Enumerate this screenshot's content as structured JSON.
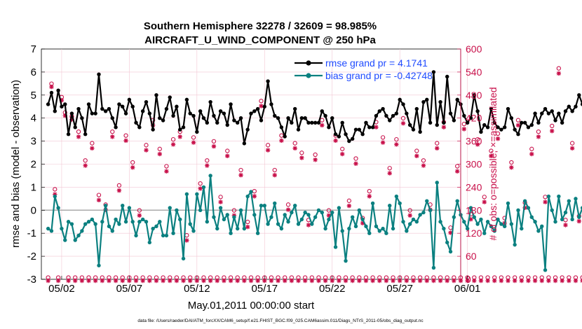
{
  "chart_data": {
    "type": "line",
    "title": "Southern Hemisphere 32278 / 32609 = 98.985%",
    "subtitle": "AIRCRAFT_U_WIND_COMPONENT @ 250 hPa",
    "xlabel": "May.01,2011 00:00:00 start",
    "ylabel": "rmse and bias (model - observation)",
    "ylabel_right": "# of obs: o=possible; ×=assimilated",
    "ylim": [
      -3,
      7
    ],
    "ylim_right": [
      0,
      600
    ],
    "x_range_days": [
      0.5,
      31.5
    ],
    "y_ticks": [
      "-3",
      "-2",
      "-1",
      "0",
      "1",
      "2",
      "3",
      "4",
      "5",
      "6",
      "7"
    ],
    "y_ticks_right": [
      "0",
      "60",
      "120",
      "180",
      "240",
      "300",
      "360",
      "420",
      "480",
      "540",
      "600"
    ],
    "x_ticks": [
      {
        "label": "05/02",
        "day": 2
      },
      {
        "label": "05/07",
        "day": 7
      },
      {
        "label": "05/12",
        "day": 12
      },
      {
        "label": "05/17",
        "day": 17
      },
      {
        "label": "05/22",
        "day": 22
      },
      {
        "label": "05/27",
        "day": 27
      },
      {
        "label": "06/01",
        "day": 32
      }
    ],
    "legend": [
      {
        "label": "rmse grand pr = 4.1741",
        "color": "#000000"
      },
      {
        "label": "bias grand pr = -0.42748",
        "color": "#0b8080"
      }
    ],
    "zero_line": 0,
    "series": [
      {
        "name": "rmse",
        "color": "#000000",
        "values": [
          4.6,
          5.1,
          4.3,
          5.2,
          4.5,
          4.6,
          3.3,
          4.2,
          3.6,
          4.4,
          4.0,
          3.3,
          4.6,
          4.2,
          4.2,
          5.9,
          4.4,
          4.3,
          4.4,
          4.0,
          3.6,
          4.6,
          4.5,
          4.2,
          4.8,
          4.5,
          3.8,
          3.6,
          4.3,
          4.7,
          4.2,
          3.5,
          5.0,
          4.0,
          3.9,
          4.4,
          4.9,
          4.1,
          4.5,
          3.5,
          3.6,
          4.8,
          4.2,
          4.1,
          3.4,
          4.3,
          4.0,
          3.8,
          4.7,
          4.1,
          3.8,
          4.3,
          4.2,
          3.7,
          4.6,
          3.9,
          3.8,
          4.0,
          2.9,
          3.5,
          4.2,
          4.3,
          4.4,
          3.9,
          4.5,
          5.6,
          4.6,
          4.1,
          4.0,
          3.6,
          3.2,
          4.0,
          3.8,
          4.4,
          3.5,
          4.0,
          4.0,
          3.8,
          3.8,
          3.8,
          3.8,
          4.3,
          4.1,
          3.6,
          4.0,
          3.3,
          3.2,
          3.8,
          3.3,
          3.0,
          3.1,
          3.5,
          3.5,
          3.3,
          3.8,
          3.6,
          3.6,
          4.1,
          4.3,
          4.4,
          4.1,
          3.9,
          4.1,
          4.2,
          4.8,
          4.6,
          4.2,
          3.7,
          3.5,
          4.4,
          3.4,
          4.7,
          4.8,
          3.8,
          6.0,
          3.7,
          4.7,
          3.8,
          5.8,
          4.2,
          3.9,
          4.8,
          4.6,
          4.1,
          3.8,
          4.0,
          5.0,
          4.3,
          3.4,
          3.7,
          3.6,
          4.4,
          3.8,
          3.6,
          3.5,
          3.6,
          4.4,
          4.0,
          3.5,
          3.3,
          3.8,
          3.8,
          3.6,
          3.7,
          4.2,
          3.8,
          4.2,
          4.4,
          4.2,
          4.3,
          3.9,
          4.2,
          3.8,
          4.3,
          4.5,
          4.3,
          4.5,
          5.0,
          4.6,
          3.8,
          4.2,
          5.5
        ]
      },
      {
        "name": "bias",
        "color": "#0b8080",
        "values": [
          -0.8,
          -0.9,
          0.6,
          0.1,
          -0.8,
          -1.3,
          -0.5,
          -0.6,
          -1.3,
          -1.1,
          -0.9,
          -0.6,
          -0.5,
          -0.4,
          -0.6,
          -2.4,
          -0.5,
          0.2,
          -0.7,
          -0.9,
          -0.4,
          -0.6,
          0.2,
          -0.5,
          0.1,
          -0.5,
          -1.1,
          -0.5,
          -0.4,
          -0.5,
          -1.4,
          -0.8,
          -0.7,
          -0.5,
          -1.1,
          -1.1,
          0.1,
          -1.0,
          0.0,
          -0.4,
          -2.1,
          0.7,
          -0.6,
          -0.9,
          0.7,
          0.0,
          1.0,
          -0.5,
          1.5,
          -0.3,
          -0.8,
          0.1,
          -0.4,
          -0.2,
          -1.0,
          -0.3,
          -0.8,
          0.0,
          -0.8,
          0.6,
          0.8,
          -0.2,
          -1.0,
          0.2,
          0.2,
          -0.6,
          -0.3,
          0.3,
          -0.6,
          -0.8,
          -0.2,
          -0.5,
          -0.1,
          0.2,
          -0.6,
          -0.4,
          -0.1,
          -0.2,
          -0.6,
          -0.3,
          0.0,
          -0.1,
          -0.8,
          -0.4,
          -0.1,
          -1.6,
          0.1,
          -0.9,
          -2.2,
          -0.8,
          -0.3,
          -0.7,
          0.0,
          -0.4,
          -0.7,
          -1.0,
          0.3,
          -0.7,
          -0.9,
          -0.8,
          -1.0,
          0.2,
          -0.8,
          0.6,
          0.3,
          -0.5,
          -0.9,
          -0.6,
          -0.4,
          -0.5,
          -0.2,
          -0.1,
          0.4,
          0.0,
          -2.5,
          1.2,
          -0.5,
          -0.8,
          -1.4,
          -1.8,
          -0.3,
          0.4,
          -0.2,
          -0.5,
          -0.8,
          0.1,
          -0.3,
          -0.6,
          -0.4,
          -1.0,
          -0.5,
          -0.7,
          -0.9,
          -0.4,
          -0.6,
          -0.7,
          0.3,
          -0.6,
          -1.5,
          0.0,
          -0.8,
          0.4,
          0.1,
          -0.3,
          -0.5,
          -0.9,
          -0.7,
          -2.6,
          0.6,
          0.0,
          -0.5,
          0.6,
          -0.4,
          -0.1,
          0.4,
          -0.4,
          0.5,
          -0.3,
          0.1,
          -0.7,
          -0.6,
          -0.9,
          -1.0
        ]
      },
      {
        "name": "obs possible",
        "color": "#c8104a",
        "values": [
          0,
          505,
          230,
          0,
          470,
          430,
          0,
          420,
          0,
          380,
          0,
          305,
          0,
          350,
          0,
          215,
          0,
          190,
          0,
          380,
          0,
          240,
          0,
          370,
          0,
          300,
          0,
          175,
          0,
          345,
          0,
          410,
          0,
          335,
          0,
          290,
          0,
          360,
          0,
          380,
          0,
          110,
          0,
          365,
          0,
          245,
          0,
          305,
          0,
          355,
          0,
          210,
          0,
          330,
          0,
          175,
          0,
          280,
          0,
          145,
          0,
          225,
          0,
          460,
          0,
          345,
          0,
          280,
          0,
          370,
          0,
          190,
          0,
          350,
          0,
          325,
          0,
          150,
          0,
          320,
          0,
          410,
          0,
          175,
          0,
          370,
          0,
          335,
          0,
          200,
          0,
          310,
          0,
          155,
          0,
          225,
          0,
          405,
          0,
          365,
          0,
          285,
          0,
          360,
          0,
          415,
          0,
          175,
          0,
          330,
          0,
          305,
          0,
          190,
          0,
          350,
          0,
          405,
          0,
          130,
          0,
          290,
          0,
          400,
          0,
          165,
          0,
          360,
          0,
          210,
          0,
          330,
          0,
          375,
          0,
          155,
          0,
          300,
          0,
          410,
          0,
          195,
          0,
          335,
          0,
          380,
          0,
          210,
          0,
          395,
          0,
          545,
          0,
          150,
          0,
          350,
          0,
          160,
          0,
          440,
          0,
          370,
          0,
          195,
          0,
          390,
          0,
          140,
          0,
          200
        ]
      },
      {
        "name": "obs assimilated",
        "color": "#c8104a",
        "values": [
          0,
          505,
          225,
          0,
          470,
          430,
          0,
          420,
          0,
          375,
          0,
          300,
          0,
          345,
          0,
          210,
          0,
          185,
          0,
          375,
          0,
          235,
          0,
          365,
          0,
          295,
          0,
          170,
          0,
          340,
          0,
          405,
          0,
          330,
          0,
          285,
          0,
          355,
          0,
          375,
          0,
          105,
          0,
          360,
          0,
          240,
          0,
          300,
          0,
          350,
          0,
          205,
          0,
          325,
          0,
          170,
          0,
          275,
          0,
          140,
          0,
          220,
          0,
          455,
          0,
          340,
          0,
          275,
          0,
          365,
          0,
          185,
          0,
          345,
          0,
          320,
          0,
          145,
          0,
          315,
          0,
          405,
          0,
          170,
          0,
          365,
          0,
          330,
          0,
          195,
          0,
          305,
          0,
          150,
          0,
          220,
          0,
          400,
          0,
          360,
          0,
          280,
          0,
          355,
          0,
          410,
          0,
          170,
          0,
          325,
          0,
          300,
          0,
          185,
          0,
          345,
          0,
          400,
          0,
          125,
          0,
          285,
          0,
          395,
          0,
          160,
          0,
          355,
          0,
          205,
          0,
          325,
          0,
          370,
          0,
          150,
          0,
          295,
          0,
          405,
          0,
          190,
          0,
          330,
          0,
          375,
          0,
          205,
          0,
          390,
          0,
          540,
          0,
          145,
          0,
          345,
          0,
          155,
          0,
          435,
          0,
          365,
          0,
          190,
          0,
          385,
          0,
          135,
          0,
          195
        ]
      }
    ]
  },
  "footer": "data file: /Users/raeder/DAI/ATM_forcXX/CAM6_setup/f.e21.FHIST_BGC.f09_025.CAM6assim.011/Diags_NTrS_2011-05/obs_diag_output.nc"
}
